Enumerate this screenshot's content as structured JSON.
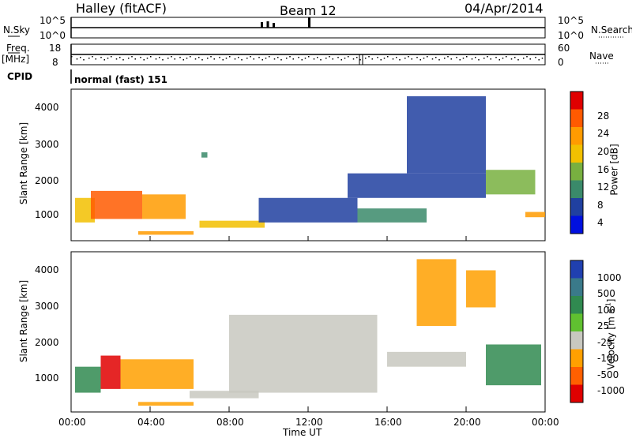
{
  "header": {
    "station": "Halley (fitACF)",
    "beam": "Beam 12",
    "date": "04/Apr/2014"
  },
  "sky_panel": {
    "left_label": "N.Sky",
    "right_label": "N.Search",
    "ticks_left": [
      "10^5",
      "10^0"
    ],
    "ticks_right": [
      "10^5",
      "10^0"
    ]
  },
  "freq_panel": {
    "left_label_top": "Freq.",
    "left_label_unit": "[MHz]",
    "right_label": "Nave",
    "ticks_left": [
      "18",
      "8"
    ],
    "ticks_right": [
      "60",
      "0"
    ]
  },
  "cpid": {
    "label": "CPID",
    "value": "normal (fast) 151"
  },
  "power_panel": {
    "ylabel": "Slant Range [km]",
    "yticks": [
      "4000",
      "3000",
      "2000",
      "1000"
    ],
    "colorbar_label": "Power [dB]",
    "colorbar_ticks": [
      "28",
      "24",
      "20",
      "16",
      "12",
      "8",
      "4"
    ]
  },
  "velocity_panel": {
    "ylabel": "Slant Range [km]",
    "yticks": [
      "4000",
      "3000",
      "2000",
      "1000"
    ],
    "colorbar_label": "Velocity [m s",
    "colorbar_label_sup": "-1",
    "colorbar_label_end": "]",
    "colorbar_ticks": [
      "1000",
      "500",
      "100",
      "25",
      "-25",
      "-100",
      "-500",
      "-1000"
    ]
  },
  "xaxis": {
    "ticks": [
      "00:00",
      "04:00",
      "08:00",
      "12:00",
      "16:00",
      "20:00",
      "00:00"
    ],
    "label": "Time UT"
  },
  "colors": {
    "power_scale": [
      "#e00000",
      "#ff5a00",
      "#ff9b00",
      "#f2c000",
      "#78b040",
      "#3a8a6a",
      "#2040a0",
      "#0010e0"
    ],
    "velocity_scale": [
      "#2040b0",
      "#3a7a8a",
      "#308a50",
      "#60c030",
      "#c8c8c0",
      "#ffa000",
      "#ff6000",
      "#e00000"
    ]
  },
  "chart_data": [
    {
      "type": "line",
      "ylim_left": [
        1,
        100000
      ],
      "log_scale": true,
      "xlim": [
        0,
        24
      ],
      "series": [
        {
          "name": "N.Sky",
          "x": [
            0,
            9.6,
            9.9,
            10.2,
            12.0,
            24.0
          ],
          "values": [
            1000,
            10000,
            20000,
            8000,
            100000,
            1000
          ]
        }
      ]
    },
    {
      "type": "line",
      "ylim_left": [
        8,
        18
      ],
      "ylim_right": [
        0,
        60
      ],
      "xlim": [
        0,
        24
      ],
      "series": [
        {
          "name": "Freq.",
          "x": [
            0,
            14.6,
            14.7,
            24
          ],
          "values": [
            12,
            12,
            8,
            12
          ]
        }
      ]
    },
    {
      "type": "heatmap",
      "name": "Power",
      "xlim": [
        0,
        24
      ],
      "ylim": [
        180,
        4500
      ],
      "zlim": [
        0,
        32
      ],
      "grid": false,
      "legend": "right",
      "regions": [
        {
          "t0": 0.2,
          "t1": 1.2,
          "r0": 700,
          "r1": 1400,
          "level": 18
        },
        {
          "t0": 1.0,
          "t1": 3.6,
          "r0": 800,
          "r1": 1600,
          "level": 26
        },
        {
          "t0": 3.6,
          "t1": 5.8,
          "r0": 800,
          "r1": 1500,
          "level": 24
        },
        {
          "t0": 3.4,
          "t1": 6.2,
          "r0": 350,
          "r1": 450,
          "level": 22
        },
        {
          "t0": 6.5,
          "t1": 9.8,
          "r0": 550,
          "r1": 750,
          "level": 18
        },
        {
          "t0": 6.6,
          "t1": 6.9,
          "r0": 2550,
          "r1": 2700,
          "level": 12
        },
        {
          "t0": 9.5,
          "t1": 14.5,
          "r0": 700,
          "r1": 1400,
          "level": 8
        },
        {
          "t0": 14.5,
          "t1": 18.0,
          "r0": 700,
          "r1": 1100,
          "level": 12
        },
        {
          "t0": 14.0,
          "t1": 21.0,
          "r0": 1400,
          "r1": 2100,
          "level": 8
        },
        {
          "t0": 17.0,
          "t1": 21.0,
          "r0": 2100,
          "r1": 4300,
          "level": 6
        },
        {
          "t0": 21.0,
          "t1": 23.5,
          "r0": 1500,
          "r1": 2200,
          "level": 14
        },
        {
          "t0": 23.0,
          "t1": 24.0,
          "r0": 850,
          "r1": 1000,
          "level": 24
        }
      ]
    },
    {
      "type": "heatmap",
      "name": "Velocity",
      "xlim": [
        0,
        24
      ],
      "ylim": [
        180,
        4500
      ],
      "zlim": [
        -1000,
        1000
      ],
      "grid": false,
      "legend": "right",
      "regions": [
        {
          "t0": 0.2,
          "t1": 1.5,
          "r0": 700,
          "r1": 1400,
          "level": 100
        },
        {
          "t0": 1.5,
          "t1": 2.5,
          "r0": 800,
          "r1": 1700,
          "level": -1000
        },
        {
          "t0": 2.5,
          "t1": 6.2,
          "r0": 800,
          "r1": 1600,
          "level": -100
        },
        {
          "t0": 3.4,
          "t1": 6.2,
          "r0": 350,
          "r1": 450,
          "level": -100
        },
        {
          "t0": 6.0,
          "t1": 9.5,
          "r0": 550,
          "r1": 750,
          "level": 0
        },
        {
          "t0": 8.0,
          "t1": 15.5,
          "r0": 700,
          "r1": 2800,
          "level": 0
        },
        {
          "t0": 16.0,
          "t1": 20.0,
          "r0": 1400,
          "r1": 1800,
          "level": 0
        },
        {
          "t0": 17.5,
          "t1": 19.5,
          "r0": 2500,
          "r1": 4300,
          "level": -100
        },
        {
          "t0": 20.0,
          "t1": 21.5,
          "r0": 3000,
          "r1": 4000,
          "level": -100
        },
        {
          "t0": 21.0,
          "t1": 23.8,
          "r0": 900,
          "r1": 2000,
          "level": 100
        }
      ]
    }
  ]
}
